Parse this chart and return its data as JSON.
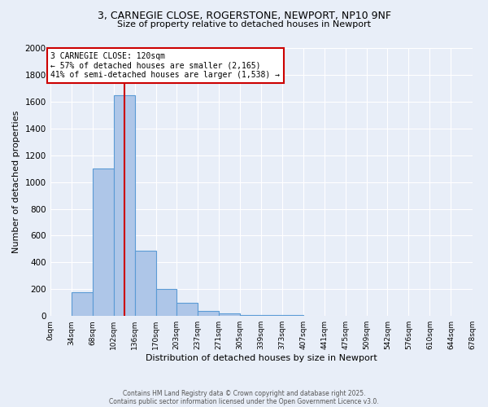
{
  "title_line1": "3, CARNEGIE CLOSE, ROGERSTONE, NEWPORT, NP10 9NF",
  "title_line2": "Size of property relative to detached houses in Newport",
  "xlabel": "Distribution of detached houses by size in Newport",
  "ylabel": "Number of detached properties",
  "bin_edges": [
    0,
    34,
    68,
    102,
    136,
    170,
    203,
    237,
    271,
    305,
    339,
    373,
    407,
    441,
    475,
    509,
    542,
    576,
    610,
    644,
    678
  ],
  "bar_heights": [
    0,
    175,
    1100,
    1650,
    490,
    200,
    100,
    40,
    20,
    10,
    10,
    10,
    0,
    0,
    0,
    0,
    0,
    0,
    0,
    0
  ],
  "bar_color": "#aec6e8",
  "bar_edge_color": "#5b9bd5",
  "bar_edge_width": 0.8,
  "bg_color": "#e8eef8",
  "grid_color": "#ffffff",
  "red_line_x": 120,
  "red_line_color": "#cc0000",
  "ylim": [
    0,
    2000
  ],
  "yticks": [
    0,
    200,
    400,
    600,
    800,
    1000,
    1200,
    1400,
    1600,
    1800,
    2000
  ],
  "annotation_text": "3 CARNEGIE CLOSE: 120sqm\n← 57% of detached houses are smaller (2,165)\n41% of semi-detached houses are larger (1,538) →",
  "annotation_box_color": "#ffffff",
  "annotation_border_color": "#cc0000",
  "footnote1": "Contains HM Land Registry data © Crown copyright and database right 2025.",
  "footnote2": "Contains public sector information licensed under the Open Government Licence v3.0.",
  "tick_labels": [
    "0sqm",
    "34sqm",
    "68sqm",
    "102sqm",
    "136sqm",
    "170sqm",
    "203sqm",
    "237sqm",
    "271sqm",
    "305sqm",
    "339sqm",
    "373sqm",
    "407sqm",
    "441sqm",
    "475sqm",
    "509sqm",
    "542sqm",
    "576sqm",
    "610sqm",
    "644sqm",
    "678sqm"
  ]
}
